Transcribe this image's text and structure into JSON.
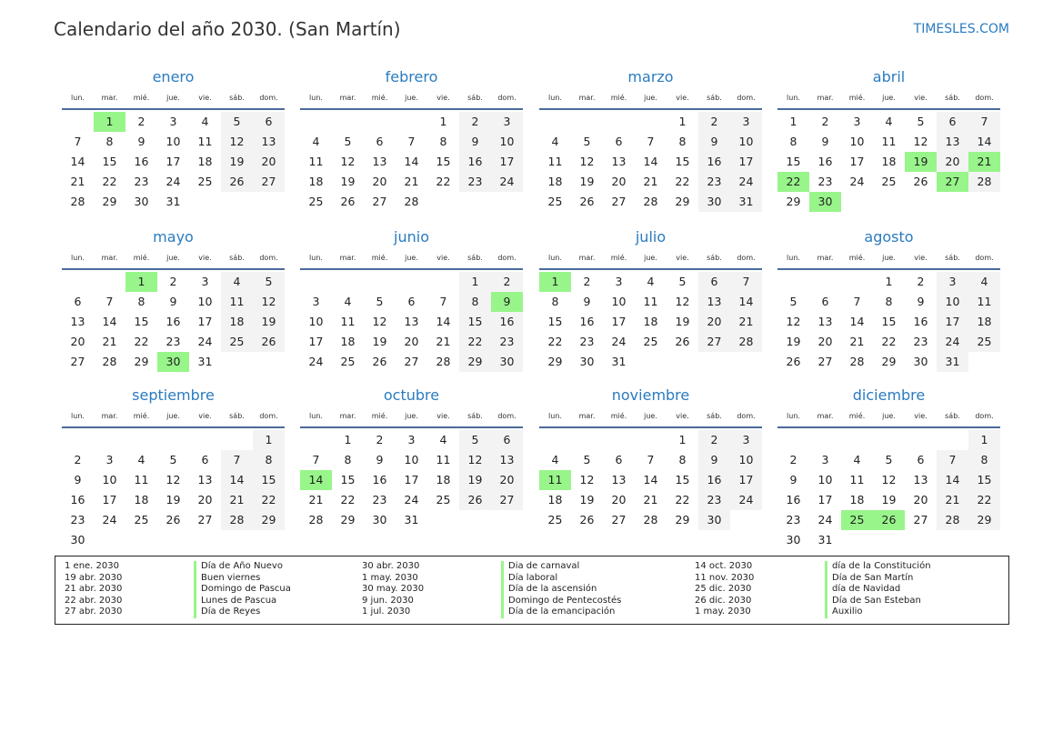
{
  "header": {
    "title": "Calendario del año 2030. (San Martín)",
    "brand": "TIMESLES.COM"
  },
  "weekdays": [
    "lun.",
    "mar.",
    "mié.",
    "jue.",
    "vie.",
    "sáb.",
    "dom."
  ],
  "colors": {
    "accent": "#2a7bc0",
    "holiday": "#98f58a",
    "weekend": "#f3f3f3"
  },
  "months": [
    {
      "name": "enero",
      "start": 1,
      "days": 31,
      "holidays": [
        1
      ]
    },
    {
      "name": "febrero",
      "start": 4,
      "days": 28,
      "holidays": []
    },
    {
      "name": "marzo",
      "start": 4,
      "days": 31,
      "holidays": []
    },
    {
      "name": "abril",
      "start": 0,
      "days": 30,
      "holidays": [
        19,
        21,
        22,
        27,
        30
      ]
    },
    {
      "name": "mayo",
      "start": 2,
      "days": 31,
      "holidays": [
        1,
        30
      ]
    },
    {
      "name": "junio",
      "start": 5,
      "days": 30,
      "holidays": [
        9
      ]
    },
    {
      "name": "julio",
      "start": 0,
      "days": 31,
      "holidays": [
        1
      ]
    },
    {
      "name": "agosto",
      "start": 3,
      "days": 31,
      "holidays": []
    },
    {
      "name": "septiembre",
      "start": 6,
      "days": 30,
      "holidays": []
    },
    {
      "name": "octubre",
      "start": 1,
      "days": 31,
      "holidays": [
        14
      ]
    },
    {
      "name": "noviembre",
      "start": 4,
      "days": 30,
      "holidays": [
        11
      ]
    },
    {
      "name": "diciembre",
      "start": 6,
      "days": 31,
      "holidays": [
        25,
        26
      ]
    }
  ],
  "legend": [
    {
      "dates": [
        "1 ene. 2030",
        "19 abr. 2030",
        "21 abr. 2030",
        "22 abr. 2030",
        "27 abr. 2030"
      ],
      "names": [
        "Día de Año Nuevo",
        "Buen viernes",
        "Domingo de Pascua",
        "Lunes de Pascua",
        "Día de Reyes"
      ]
    },
    {
      "dates": [
        "30 abr. 2030",
        "1 may. 2030",
        "30 may. 2030",
        "9 jun. 2030",
        "1 jul. 2030"
      ],
      "names": [
        "Dia de carnaval",
        "Día laboral",
        "Día de la ascensión",
        "Domingo de Pentecostés",
        "Día de la emancipación"
      ]
    },
    {
      "dates": [
        "14 oct. 2030",
        "11 nov. 2030",
        "25 dic. 2030",
        "26 dic. 2030",
        "1 may. 2030"
      ],
      "names": [
        "día de la Constitución",
        "Día de San Martín",
        "día de Navidad",
        "Día de San Esteban",
        "Auxilio"
      ]
    }
  ]
}
